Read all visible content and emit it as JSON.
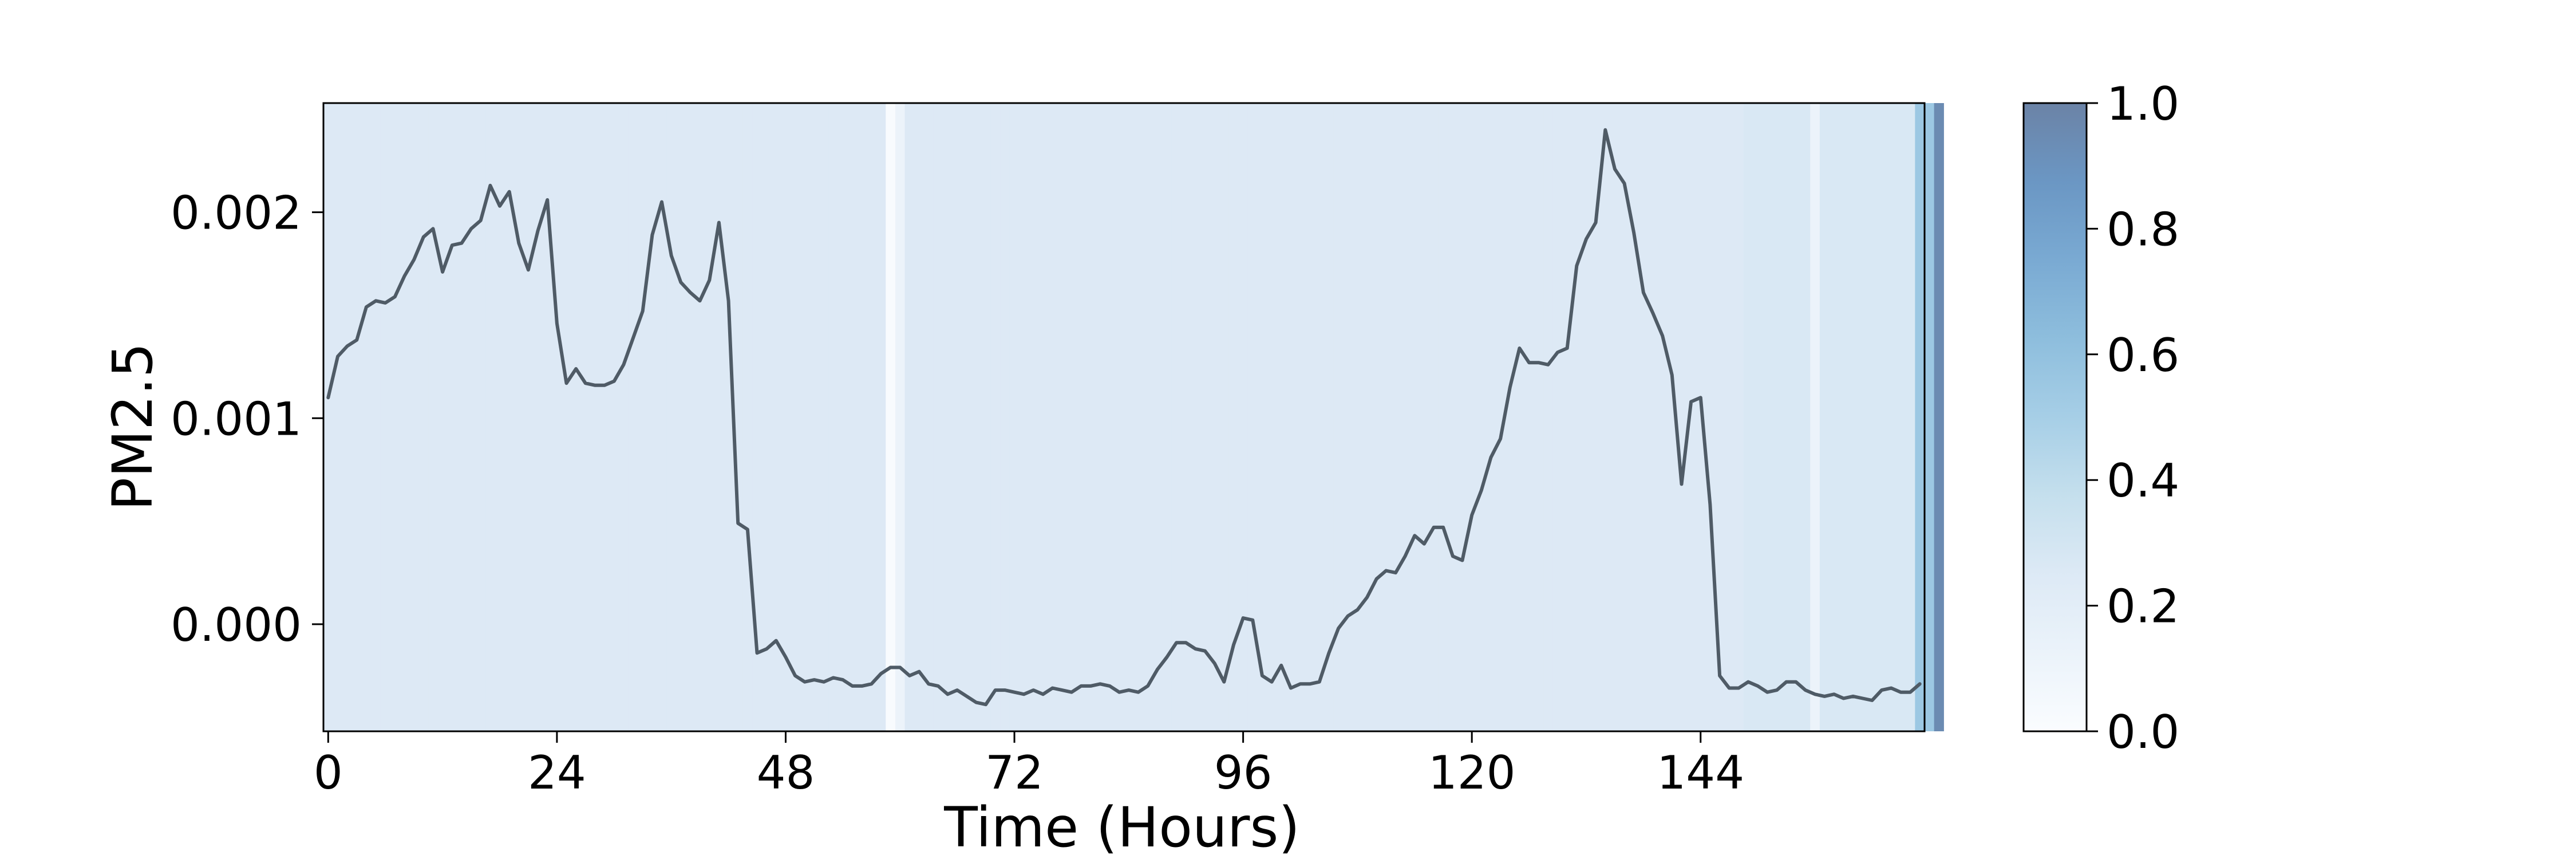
{
  "chart_data": {
    "type": "line",
    "title": "",
    "xlabel": "Time (Hours)",
    "ylabel": "PM2.5",
    "xlim": [
      -0.5,
      167.5
    ],
    "ylim": [
      -0.00052,
      0.00253
    ],
    "x_ticks": [
      0,
      24,
      48,
      72,
      96,
      120,
      144
    ],
    "x_tick_labels": [
      "0",
      "24",
      "48",
      "72",
      "96",
      "120",
      "144"
    ],
    "y_ticks": [
      0.0,
      0.001,
      0.002
    ],
    "y_tick_labels": [
      "0.000",
      "0.001",
      "0.002"
    ],
    "grid": false,
    "legend": "none",
    "line_color": "#4f5b66",
    "series": [
      {
        "x": [
          0,
          1,
          2,
          3,
          4,
          5,
          6,
          7,
          8,
          9,
          10,
          11,
          12,
          13,
          14,
          15,
          16,
          17,
          18,
          19,
          20,
          21,
          22,
          23,
          24,
          25,
          26,
          27,
          28,
          29,
          30,
          31,
          32,
          33,
          34,
          35,
          36,
          37,
          38,
          39,
          40,
          41,
          42,
          43,
          44,
          45,
          46,
          47,
          48,
          49,
          50,
          51,
          52,
          53,
          54,
          55,
          56,
          57,
          58,
          59,
          60,
          61,
          62,
          63,
          64,
          65,
          66,
          67,
          68,
          69,
          70,
          71,
          72,
          73,
          74,
          75,
          76,
          77,
          78,
          79,
          80,
          81,
          82,
          83,
          84,
          85,
          86,
          87,
          88,
          89,
          90,
          91,
          92,
          93,
          94,
          95,
          96,
          97,
          98,
          99,
          100,
          101,
          102,
          103,
          104,
          105,
          106,
          107,
          108,
          109,
          110,
          111,
          112,
          113,
          114,
          115,
          116,
          117,
          118,
          119,
          120,
          121,
          122,
          123,
          124,
          125,
          126,
          127,
          128,
          129,
          130,
          131,
          132,
          133,
          134,
          135,
          136,
          137,
          138,
          139,
          140,
          141,
          142,
          143,
          144,
          145,
          146,
          147,
          148,
          149,
          150,
          151,
          152,
          153,
          154,
          155,
          156,
          157,
          158,
          159,
          160,
          161,
          162,
          163,
          164,
          165,
          166,
          167
        ],
        "values": [
          0.0011,
          0.0013,
          0.00135,
          0.00138,
          0.00154,
          0.00157,
          0.00156,
          0.00159,
          0.00169,
          0.00177,
          0.00188,
          0.00192,
          0.00171,
          0.00184,
          0.00185,
          0.00192,
          0.00196,
          0.00213,
          0.00203,
          0.0021,
          0.00185,
          0.00172,
          0.00191,
          0.00206,
          0.00146,
          0.00117,
          0.00124,
          0.00117,
          0.00116,
          0.00116,
          0.00118,
          0.00126,
          0.00139,
          0.00152,
          0.00189,
          0.00205,
          0.00179,
          0.00166,
          0.00161,
          0.00157,
          0.00167,
          0.00195,
          0.00157,
          0.00049,
          0.00046,
          -0.00014,
          -0.00012,
          -8e-05,
          -0.00016,
          -0.00025,
          -0.00028,
          -0.00027,
          -0.00028,
          -0.00026,
          -0.00027,
          -0.0003,
          -0.0003,
          -0.00029,
          -0.00024,
          -0.00021,
          -0.00021,
          -0.00025,
          -0.00023,
          -0.00029,
          -0.0003,
          -0.00034,
          -0.00032,
          -0.00035,
          -0.00038,
          -0.00039,
          -0.00032,
          -0.00032,
          -0.00033,
          -0.00034,
          -0.00032,
          -0.00034,
          -0.00031,
          -0.00032,
          -0.00033,
          -0.0003,
          -0.0003,
          -0.00029,
          -0.0003,
          -0.00033,
          -0.00032,
          -0.00033,
          -0.0003,
          -0.00022,
          -0.00016,
          -9e-05,
          -9e-05,
          -0.00012,
          -0.00013,
          -0.00019,
          -0.00028,
          -0.0001,
          3e-05,
          2e-05,
          -0.00025,
          -0.00028,
          -0.0002,
          -0.00031,
          -0.00029,
          -0.00029,
          -0.00028,
          -0.00014,
          -2e-05,
          4e-05,
          7e-05,
          0.00013,
          0.00022,
          0.00026,
          0.00025,
          0.00033,
          0.00043,
          0.00039,
          0.00047,
          0.00047,
          0.00033,
          0.00031,
          0.00053,
          0.00065,
          0.00081,
          0.0009,
          0.00115,
          0.00134,
          0.00127,
          0.00127,
          0.00126,
          0.00132,
          0.00134,
          0.00174,
          0.00187,
          0.00195,
          0.0024,
          0.00221,
          0.00214,
          0.0019,
          0.00161,
          0.00151,
          0.0014,
          0.00121,
          0.00068,
          0.00108,
          0.0011,
          0.00058,
          -0.00025,
          -0.00031,
          -0.00031,
          -0.00028,
          -0.0003,
          -0.00033,
          -0.00032,
          -0.00028,
          -0.00028,
          -0.00032,
          -0.00034,
          -0.00035,
          -0.00034,
          -0.00036,
          -0.00035,
          -0.00036,
          -0.00037,
          -0.00032,
          -0.00031,
          -0.00033,
          -0.00033,
          -0.00029
        ]
      }
    ],
    "background_band_values": [
      0.25,
      0.25,
      0.25,
      0.25,
      0.25,
      0.25,
      0.25,
      0.25,
      0.25,
      0.25,
      0.25,
      0.25,
      0.25,
      0.25,
      0.25,
      0.25,
      0.25,
      0.25,
      0.25,
      0.25,
      0.25,
      0.25,
      0.25,
      0.25,
      0.25,
      0.25,
      0.25,
      0.25,
      0.25,
      0.25,
      0.25,
      0.25,
      0.25,
      0.25,
      0.25,
      0.25,
      0.25,
      0.25,
      0.25,
      0.25,
      0.25,
      0.25,
      0.25,
      0.25,
      0.25,
      0.25,
      0.25,
      0.25,
      0.25,
      0.25,
      0.25,
      0.25,
      0.25,
      0.25,
      0.25,
      0.25,
      0.25,
      0.25,
      0.25,
      0.02,
      0.12,
      0.25,
      0.25,
      0.25,
      0.25,
      0.25,
      0.25,
      0.25,
      0.25,
      0.25,
      0.25,
      0.25,
      0.25,
      0.25,
      0.25,
      0.25,
      0.25,
      0.25,
      0.25,
      0.25,
      0.25,
      0.25,
      0.25,
      0.25,
      0.25,
      0.25,
      0.25,
      0.25,
      0.25,
      0.25,
      0.25,
      0.25,
      0.25,
      0.25,
      0.25,
      0.25,
      0.25,
      0.25,
      0.25,
      0.25,
      0.25,
      0.25,
      0.25,
      0.25,
      0.25,
      0.25,
      0.25,
      0.25,
      0.25,
      0.25,
      0.25,
      0.25,
      0.25,
      0.25,
      0.25,
      0.25,
      0.25,
      0.25,
      0.25,
      0.25,
      0.25,
      0.25,
      0.25,
      0.25,
      0.25,
      0.25,
      0.25,
      0.25,
      0.25,
      0.25,
      0.25,
      0.25,
      0.25,
      0.25,
      0.25,
      0.25,
      0.25,
      0.25,
      0.25,
      0.25,
      0.25,
      0.25,
      0.25,
      0.25,
      0.25,
      0.25,
      0.25,
      0.25,
      0.25,
      0.27,
      0.27,
      0.27,
      0.27,
      0.27,
      0.27,
      0.27,
      0.12,
      0.27,
      0.27,
      0.27,
      0.27,
      0.27,
      0.27,
      0.27,
      0.27,
      0.27,
      0.27,
      0.55,
      0.55,
      0.95
    ],
    "colorbar": {
      "range": [
        0.0,
        1.0
      ],
      "ticks": [
        0.0,
        0.2,
        0.4,
        0.6,
        0.8,
        1.0
      ],
      "tick_labels": [
        "0.0",
        "0.2",
        "0.4",
        "0.6",
        "0.8",
        "1.0"
      ],
      "colormap": "Blues",
      "alpha": 0.6
    }
  }
}
